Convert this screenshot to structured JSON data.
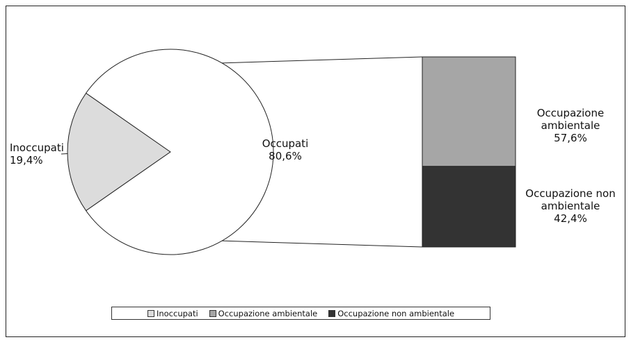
{
  "chart_data": {
    "type": "pie",
    "categories": [
      "Inoccupati",
      "Occupati"
    ],
    "values": [
      19.4,
      80.6
    ],
    "value_labels": [
      "19,4%",
      "80,6%"
    ],
    "colors": [
      "#dcdcdc",
      "#ffffff"
    ],
    "breakdown": {
      "type": "bar",
      "categories": [
        "Occupazione ambientale",
        "Occupazione non ambientale"
      ],
      "values": [
        57.6,
        42.4
      ],
      "value_labels": [
        "57,6%",
        "42,4%"
      ],
      "colors": [
        "#a6a6a6",
        "#333333"
      ]
    },
    "legend": "bottom"
  }
}
